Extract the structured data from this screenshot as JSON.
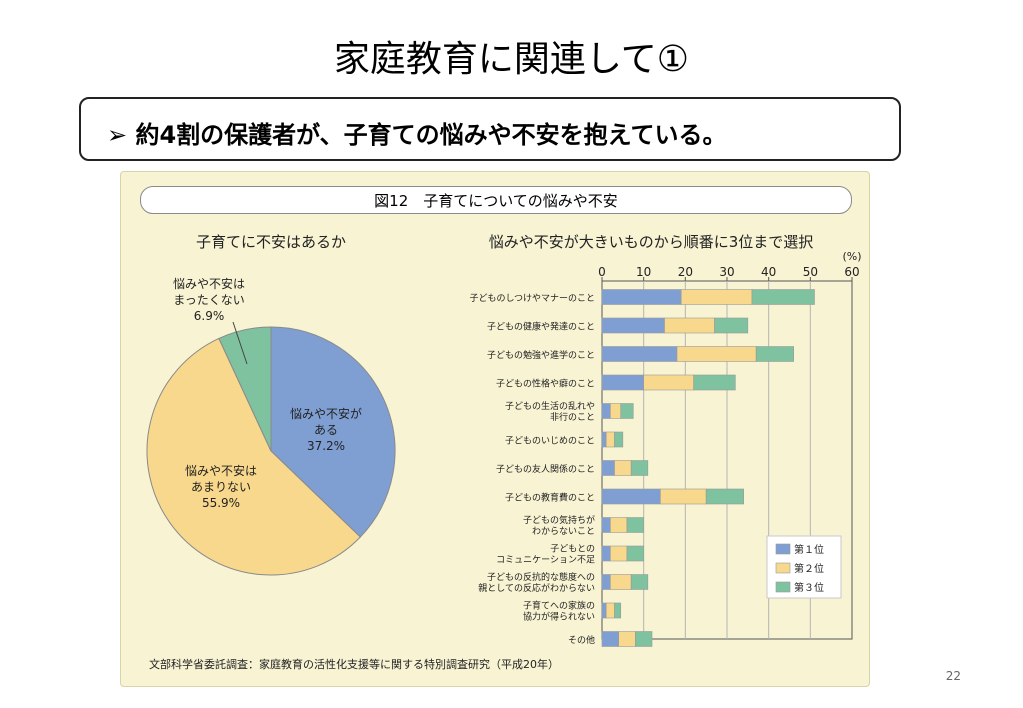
{
  "slide": {
    "title": "家庭教育に関連して①",
    "callout_marker": "➢",
    "callout": "約4割の保護者が、子育ての悩みや不安を抱えている。",
    "page_number": "22"
  },
  "figure": {
    "title": "図12　子育てについての悩みや不安",
    "source": "文部科学省委託調査：家庭教育の活性化支援等に関する特別調査研究（平成20年）"
  },
  "colors": {
    "blue": "#7f9fd2",
    "yellow": "#f7d88c",
    "green": "#7fc2a0",
    "panel": "#f7f3d3"
  },
  "chart_data": [
    {
      "type": "pie",
      "title": "子育てに不安はあるか",
      "slices": [
        {
          "label_lines": [
            "悩みや不安が",
            "ある"
          ],
          "value": 37.2,
          "value_label": "37.2%",
          "color": "#7f9fd2"
        },
        {
          "label_lines": [
            "悩みや不安は",
            "あまりない"
          ],
          "value": 55.9,
          "value_label": "55.9%",
          "color": "#f7d88c"
        },
        {
          "label_lines": [
            "悩みや不安は",
            "まったくない"
          ],
          "value": 6.9,
          "value_label": "6.9%",
          "color": "#7fc2a0"
        }
      ]
    },
    {
      "type": "bar",
      "orientation": "horizontal",
      "stacked": true,
      "title": "悩みや不安が大きいものから順番に3位まで選択",
      "unit": "(%)",
      "xlim": [
        0,
        60
      ],
      "ticks": [
        0,
        10,
        20,
        30,
        40,
        50,
        60
      ],
      "grid": true,
      "legend_position": "bottom-right",
      "categories": [
        [
          "子どものしつけやマナーのこと"
        ],
        [
          "子どもの健康や発達のこと"
        ],
        [
          "子どもの勉強や進学のこと"
        ],
        [
          "子どもの性格や癖のこと"
        ],
        [
          "子どもの生活の乱れや",
          "非行のこと"
        ],
        [
          "子どものいじめのこと"
        ],
        [
          "子どもの友人関係のこと"
        ],
        [
          "子どもの教育費のこと"
        ],
        [
          "子どもの気持ちが",
          "わからないこと"
        ],
        [
          "子どもとの",
          "コミュニケーション不足"
        ],
        [
          "子どもの反抗的な態度への",
          "親としての反応がわからない"
        ],
        [
          "子育てへの家族の",
          "協力が得られない"
        ],
        [
          "その他"
        ]
      ],
      "series": [
        {
          "name": "第１位",
          "color": "#7f9fd2",
          "values": [
            19,
            15,
            18,
            10,
            2,
            1,
            3,
            14,
            2,
            2,
            2,
            1,
            4
          ]
        },
        {
          "name": "第２位",
          "color": "#f7d88c",
          "values": [
            17,
            12,
            19,
            12,
            2.5,
            2,
            4,
            11,
            4,
            4,
            5,
            2,
            4
          ]
        },
        {
          "name": "第３位",
          "color": "#7fc2a0",
          "values": [
            15,
            8,
            9,
            10,
            3,
            2,
            4,
            9,
            4,
            4,
            4,
            1.5,
            4
          ]
        }
      ]
    }
  ]
}
